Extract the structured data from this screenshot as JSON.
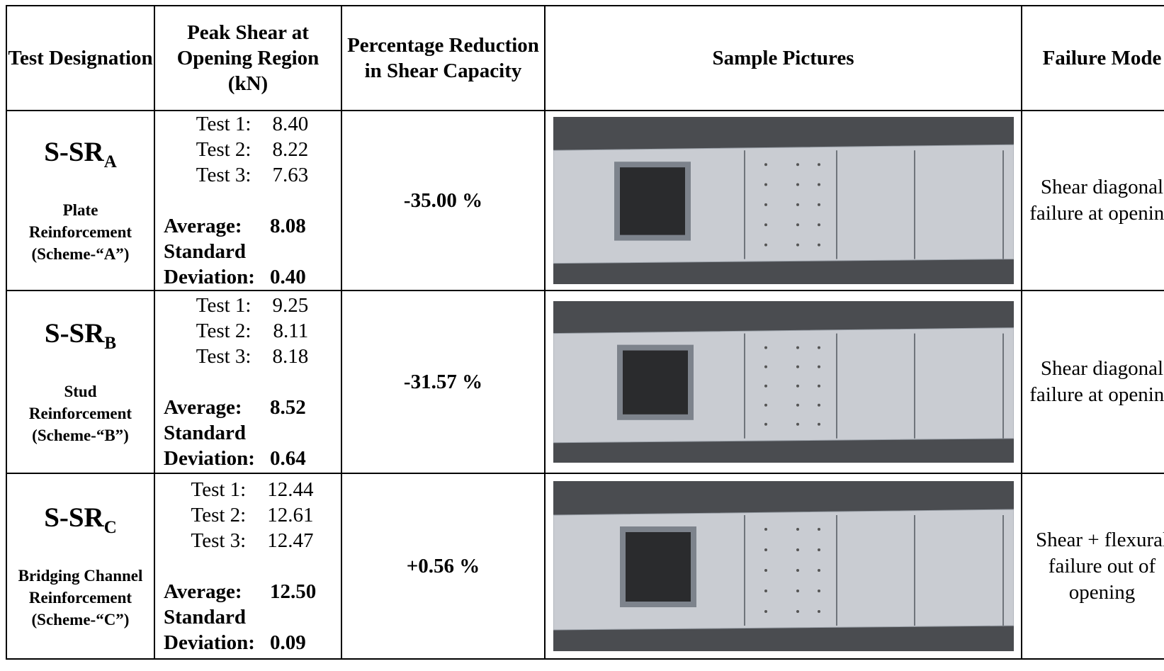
{
  "table": {
    "header": [
      "Test Designation",
      "Peak Shear  at Opening Region (kN)",
      "Percentage Reduction in Shear Capacity",
      "Sample Pictures",
      "Failure Mode"
    ],
    "rows": [
      {
        "designation": "S-SR",
        "subscript": "A",
        "scheme": "Plate Reinforcement (Scheme-“A”)",
        "tests": [
          {
            "label": "Test 1:",
            "value": "8.40"
          },
          {
            "label": "Test 2:",
            "value": "8.22"
          },
          {
            "label": "Test 3:",
            "value": "7.63"
          }
        ],
        "average_label": "Average:",
        "average": "8.08",
        "std_label": "Standard Deviation:",
        "std": "0.40",
        "reduction": "-35.00 %",
        "failure_mode": "Shear diagonal failure at opening"
      },
      {
        "designation": "S-SR",
        "subscript": "B",
        "scheme": "Stud Reinforcement (Scheme-“B”)",
        "tests": [
          {
            "label": "Test 1:",
            "value": "9.25"
          },
          {
            "label": "Test 2:",
            "value": "8.11"
          },
          {
            "label": "Test 3:",
            "value": "8.18"
          }
        ],
        "average_label": "Average:",
        "average": "8.52",
        "std_label": "Standard Deviation:",
        "std": "0.64",
        "reduction": "-31.57 %",
        "failure_mode": "Shear diagonal failure at opening"
      },
      {
        "designation": "S-SR",
        "subscript": "C",
        "scheme": "Bridging Channel Reinforcement (Scheme-“C”)",
        "tests": [
          {
            "label": "Test 1:",
            "value": "12.44"
          },
          {
            "label": "Test 2:",
            "value": "12.61"
          },
          {
            "label": "Test 3:",
            "value": "12.47"
          }
        ],
        "average_label": "Average:",
        "average": "12.50",
        "std_label": "Standard Deviation:",
        "std": "0.09",
        "reduction": "+0.56 %",
        "failure_mode": "Shear + flexural failure out of opening"
      }
    ]
  }
}
